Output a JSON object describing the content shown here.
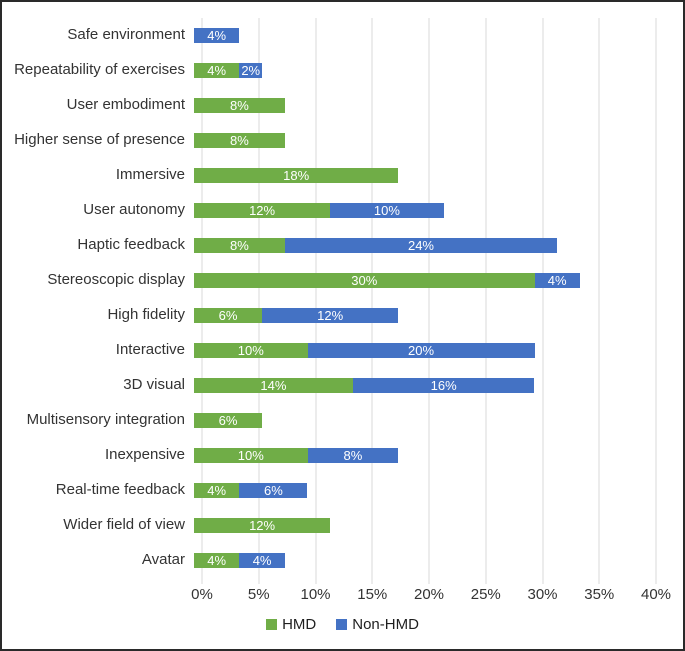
{
  "chart_data": {
    "type": "bar",
    "orientation": "horizontal",
    "stacked": true,
    "title": "",
    "xlabel": "",
    "ylabel": "",
    "categories": [
      "Safe environment",
      "Repeatability of exercises",
      "User embodiment",
      "Higher sense of presence",
      "Immersive",
      "User autonomy",
      "Haptic feedback",
      "Stereoscopic display",
      "High fidelity",
      "Interactive",
      "3D visual",
      "Multisensory integration",
      "Inexpensive",
      "Real-time feedback",
      "Wider field of view",
      "Avatar"
    ],
    "series": [
      {
        "name": "HMD",
        "color": "#70ad47",
        "values": [
          0,
          4,
          8,
          8,
          18,
          12,
          8,
          30,
          6,
          10,
          14,
          6,
          10,
          4,
          12,
          4
        ]
      },
      {
        "name": "Non-HMD",
        "color": "#4472c4",
        "values": [
          4,
          2,
          0,
          0,
          0,
          10,
          24,
          4,
          12,
          20,
          16,
          0,
          8,
          6,
          0,
          4
        ]
      }
    ],
    "value_label_suffix": "%",
    "x_ticks": [
      "0%",
      "5%",
      "10%",
      "15%",
      "20%",
      "25%",
      "30%",
      "35%",
      "40%"
    ],
    "xlim": [
      0,
      40
    ],
    "grid": true,
    "legend_position": "bottom-center",
    "colors": {
      "gridline": "#d9d9d9",
      "axis_text": "#333333",
      "category_text": "#333333",
      "bar_value_text": "#ffffff",
      "legend_text": "#1f1f1f",
      "background": "#ffffff",
      "frame_border": "#2a2a2a"
    }
  }
}
